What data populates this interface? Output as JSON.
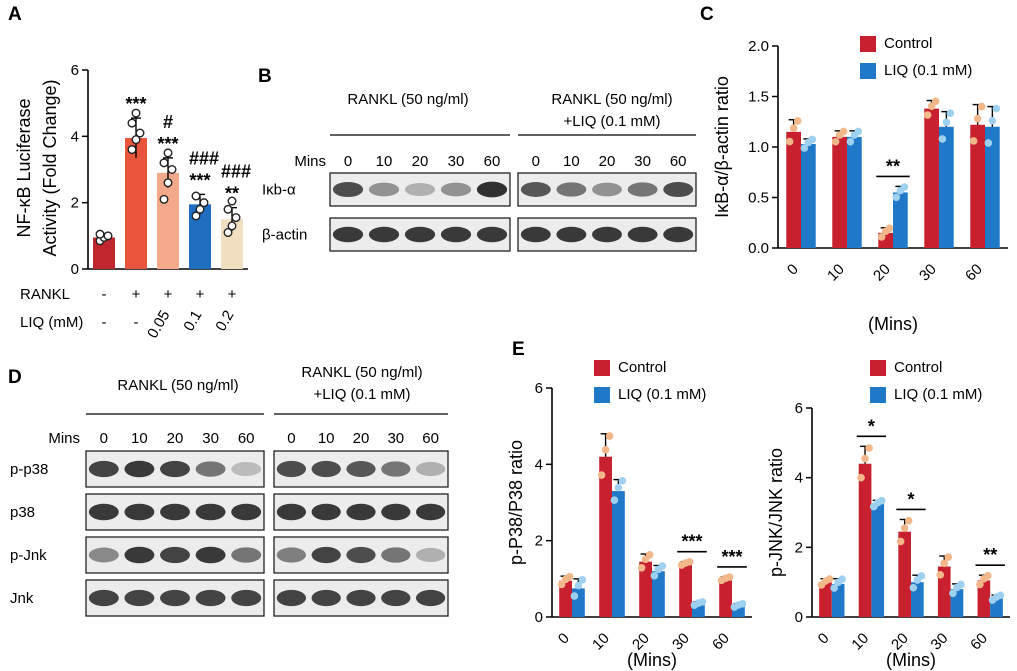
{
  "colors": {
    "control": "#c8202f",
    "liq": "#1f78c8",
    "a_bars": [
      "#c0262d",
      "#e8543c",
      "#f3a98a",
      "#1f6fc0",
      "#f2dfc2"
    ],
    "dot_control": "#f2b88a",
    "dot_liq": "#9ed0ef",
    "band": "#262626"
  },
  "panel_labels": {
    "a": "A",
    "b": "B",
    "c": "C",
    "d": "D",
    "e": "E"
  },
  "chart_data": [
    {
      "id": "A",
      "type": "bar",
      "ylabel_line1": "NF-κB Luciferase",
      "ylabel_line2": "Activity (Fold Change)",
      "ylim": [
        0,
        6
      ],
      "yticks": [
        "0",
        "2",
        "4",
        "6"
      ],
      "values": [
        0.95,
        3.95,
        2.9,
        1.95,
        1.5
      ],
      "errors": [
        0.1,
        0.6,
        0.45,
        0.3,
        0.35
      ],
      "points": [
        [
          0.85,
          0.95,
          1.0,
          1.05
        ],
        [
          3.6,
          3.9,
          4.1,
          4.4,
          4.7
        ],
        [
          2.1,
          2.6,
          3.0,
          3.2,
          3.5
        ],
        [
          1.6,
          1.8,
          2.0,
          2.2
        ],
        [
          1.1,
          1.3,
          1.55,
          1.8,
          2.05
        ]
      ],
      "row_labels": {
        "rankl": "RANKL",
        "liq": "LIQ (mM)"
      },
      "rankl_row": [
        "-",
        "+",
        "+",
        "+",
        "+"
      ],
      "liq_row": [
        "-",
        "-",
        "0.05",
        "0.1",
        "0.2"
      ],
      "annotations": {
        "b1": [
          "***"
        ],
        "b2": [
          "#",
          "***"
        ],
        "b3": [
          "###",
          "***"
        ],
        "b4": [
          "###",
          "**"
        ]
      }
    },
    {
      "id": "C",
      "type": "bar",
      "categories": [
        "0",
        "10",
        "20",
        "30",
        "60"
      ],
      "series": [
        {
          "name": "Control",
          "values": [
            1.15,
            1.1,
            0.15,
            1.38,
            1.22
          ],
          "errors": [
            0.12,
            0.06,
            0.05,
            0.08,
            0.2
          ]
        },
        {
          "name": "LIQ (0.1 mM)",
          "values": [
            1.03,
            1.1,
            0.55,
            1.2,
            1.2
          ],
          "errors": [
            0.05,
            0.06,
            0.06,
            0.15,
            0.2
          ]
        }
      ],
      "ylabel": "IκB-α/β-actin ratio",
      "xlabel": "(Mins)",
      "ylim": [
        0,
        2.0
      ],
      "yticks": [
        "0.0",
        "0.5",
        "1.0",
        "1.5",
        "2.0"
      ],
      "legend": "top-right",
      "significance": [
        {
          "category": "20",
          "label": "**"
        }
      ]
    },
    {
      "id": "E1",
      "type": "bar",
      "categories": [
        "0",
        "10",
        "20",
        "30",
        "60"
      ],
      "series": [
        {
          "name": "Control",
          "values": [
            0.95,
            4.2,
            1.45,
            1.4,
            1.0
          ],
          "errors": [
            0.12,
            0.6,
            0.2,
            0.05,
            0.05
          ]
        },
        {
          "name": "LIQ (0.1 mM)",
          "values": [
            0.75,
            3.3,
            1.2,
            0.35,
            0.3
          ],
          "errors": [
            0.25,
            0.3,
            0.15,
            0.05,
            0.05
          ]
        }
      ],
      "ylabel": "p-P38/P38 ratio",
      "xlabel": "(Mins)",
      "ylim": [
        0,
        6
      ],
      "yticks": [
        "0",
        "2",
        "4",
        "6"
      ],
      "legend": "top-right",
      "significance": [
        {
          "category": "30",
          "label": "***"
        },
        {
          "category": "60",
          "label": "***"
        }
      ]
    },
    {
      "id": "E2",
      "type": "bar",
      "categories": [
        "0",
        "10",
        "20",
        "30",
        "60"
      ],
      "series": [
        {
          "name": "Control",
          "values": [
            1.0,
            4.4,
            2.45,
            1.45,
            1.05
          ],
          "errors": [
            0.1,
            0.5,
            0.35,
            0.3,
            0.15
          ]
        },
        {
          "name": "LIQ (0.1 mM)",
          "values": [
            0.95,
            3.25,
            1.0,
            0.8,
            0.55
          ],
          "errors": [
            0.15,
            0.1,
            0.2,
            0.15,
            0.08
          ]
        }
      ],
      "ylabel": "p-JNK/JNK ratio",
      "xlabel": "(Mins)",
      "ylim": [
        0,
        6
      ],
      "yticks": [
        "0",
        "2",
        "4",
        "6"
      ],
      "legend": "top-right",
      "significance": [
        {
          "category": "10",
          "label": "*"
        },
        {
          "category": "20",
          "label": "*"
        },
        {
          "category": "60",
          "label": "**"
        }
      ]
    }
  ],
  "blot_b": {
    "cond_left": "RANKL (50 ng/ml)",
    "cond_right_1": "RANKL (50 ng/ml)",
    "cond_right_2": "+LIQ (0.1 mM)",
    "mins_label": "Mins",
    "times": [
      "0",
      "10",
      "20",
      "30",
      "60"
    ],
    "rows": [
      "Iκb-α",
      "β-actin"
    ],
    "intensities": {
      "left": [
        [
          0.8,
          0.45,
          0.3,
          0.45,
          0.95
        ],
        [
          0.9,
          0.9,
          0.9,
          0.9,
          0.9
        ]
      ],
      "right": [
        [
          0.75,
          0.6,
          0.45,
          0.6,
          0.8
        ],
        [
          0.9,
          0.9,
          0.9,
          0.9,
          0.9
        ]
      ]
    }
  },
  "blot_d": {
    "cond_left": "RANKL (50 ng/ml)",
    "cond_right_1": "RANKL (50 ng/ml)",
    "cond_right_2": "+LIQ (0.1 mM)",
    "mins_label": "Mins",
    "times": [
      "0",
      "10",
      "20",
      "30",
      "60"
    ],
    "rows": [
      "p-p38",
      "p38",
      "p-Jnk",
      "Jnk"
    ],
    "intensities": {
      "left": [
        [
          0.85,
          0.9,
          0.85,
          0.6,
          0.25
        ],
        [
          0.9,
          0.9,
          0.9,
          0.9,
          0.9
        ],
        [
          0.5,
          0.9,
          0.85,
          0.9,
          0.6
        ],
        [
          0.85,
          0.85,
          0.85,
          0.85,
          0.85
        ]
      ],
      "right": [
        [
          0.8,
          0.8,
          0.75,
          0.6,
          0.3
        ],
        [
          0.9,
          0.9,
          0.9,
          0.9,
          0.9
        ],
        [
          0.55,
          0.85,
          0.8,
          0.6,
          0.3
        ],
        [
          0.85,
          0.85,
          0.85,
          0.85,
          0.85
        ]
      ]
    }
  }
}
